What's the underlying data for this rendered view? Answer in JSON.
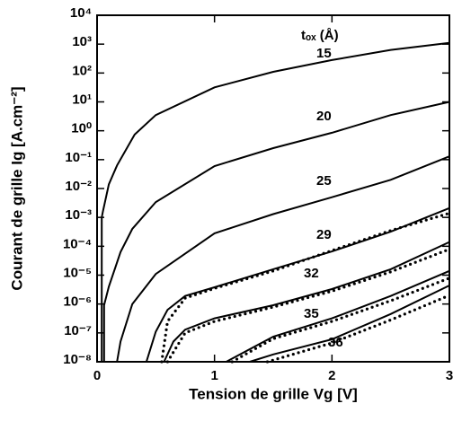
{
  "chart_data": {
    "type": "line",
    "xlabel": "Tension de grille Vg [V]",
    "ylabel": "Courant de grille Ig [A.cm⁻²]",
    "annotation": "tₒₓ (Å)",
    "xlim": [
      0,
      3
    ],
    "xticks": [
      0,
      1,
      2,
      3
    ],
    "ylim": [
      1e-08,
      10000
    ],
    "yscale": "log",
    "yticks": [
      {
        "value": 10000,
        "label": "10⁴"
      },
      {
        "value": 1000,
        "label": "10³"
      },
      {
        "value": 100,
        "label": "10²"
      },
      {
        "value": 10,
        "label": "10¹"
      },
      {
        "value": 1,
        "label": "10⁰"
      },
      {
        "value": 0.1,
        "label": "10⁻¹"
      },
      {
        "value": 0.01,
        "label": "10⁻²"
      },
      {
        "value": 0.001,
        "label": "10⁻³"
      },
      {
        "value": 0.0001,
        "label": "10⁻⁴"
      },
      {
        "value": 1e-05,
        "label": "10⁻⁵"
      },
      {
        "value": 1e-06,
        "label": "10⁻⁶"
      },
      {
        "value": 1e-07,
        "label": "10⁻⁷"
      },
      {
        "value": 1e-08,
        "label": "10⁻⁸"
      }
    ],
    "series": [
      {
        "name": "15",
        "color": "#000000",
        "style": "solid",
        "x": [
          0.04,
          0.04,
          0.05,
          0.1,
          0.17,
          0.32,
          0.5,
          1,
          1.5,
          2,
          2.5,
          3
        ],
        "values": [
          1e-08,
          0.001,
          0.0016,
          0.014,
          0.063,
          0.74,
          3.5,
          32,
          110,
          280,
          630,
          1100
        ]
      },
      {
        "name": "20",
        "color": "#000000",
        "style": "solid",
        "x": [
          0.06,
          0.06,
          0.1,
          0.2,
          0.3,
          0.5,
          1,
          1.5,
          2,
          2.5,
          3
        ],
        "values": [
          1e-08,
          9.1e-07,
          4e-06,
          6.3e-05,
          0.0004,
          0.0034,
          0.06,
          0.25,
          0.85,
          3.5,
          10
        ]
      },
      {
        "name": "25",
        "color": "#000000",
        "style": "solid",
        "x": [
          0.17,
          0.2,
          0.3,
          0.5,
          1,
          1.5,
          2,
          2.5,
          3
        ],
        "values": [
          1e-08,
          5e-08,
          1e-06,
          1.1e-05,
          0.00028,
          0.0013,
          0.005,
          0.02,
          0.13
        ]
      },
      {
        "name": "29",
        "color": "#000000",
        "style": "solid",
        "x": [
          0.42,
          0.5,
          0.6,
          0.75,
          1,
          1.5,
          2,
          2.5,
          3
        ],
        "values": [
          1e-08,
          1.1e-07,
          6.3e-07,
          1.9e-06,
          3.8e-06,
          1.6e-05,
          6.6e-05,
          0.00032,
          0.0021
        ]
      },
      {
        "color": "#000000",
        "style": "dotted",
        "x": [
          0.55,
          0.6,
          0.75,
          1,
          1.5,
          2,
          2.5,
          3
        ],
        "values": [
          1e-08,
          2.5e-07,
          1.6e-06,
          3.5e-06,
          1.4e-05,
          7.1e-05,
          0.00035,
          0.0014
        ]
      },
      {
        "name": "32",
        "color": "#000000",
        "style": "solid",
        "x": [
          0.57,
          0.65,
          0.75,
          1,
          1.5,
          2,
          2.5,
          3
        ],
        "values": [
          1e-08,
          5e-08,
          1.3e-07,
          3.2e-07,
          9.1e-07,
          3.3e-06,
          1.6e-05,
          0.00014
        ]
      },
      {
        "color": "#000000",
        "style": "dotted",
        "x": [
          0.6,
          0.75,
          1,
          1.5,
          2,
          2.5,
          3
        ],
        "values": [
          1e-08,
          1e-07,
          2.5e-07,
          7.9e-07,
          2.8e-06,
          1.3e-05,
          7.9e-05
        ]
      },
      {
        "name": "35",
        "color": "#000000",
        "style": "solid",
        "x": [
          1.1,
          1.5,
          2,
          2.5,
          3
        ],
        "values": [
          1e-08,
          7.4e-08,
          3.2e-07,
          1.9e-06,
          1.4e-05
        ]
      },
      {
        "color": "#000000",
        "style": "dotted",
        "x": [
          1.15,
          1.5,
          2,
          2.5,
          3
        ],
        "values": [
          1e-08,
          6.3e-08,
          2.5e-07,
          1.3e-06,
          7.9e-06
        ]
      },
      {
        "name": "36",
        "color": "#000000",
        "style": "solid",
        "x": [
          1.3,
          1.5,
          2,
          2.5,
          3
        ],
        "values": [
          1e-08,
          1.8e-08,
          6e-08,
          4.5e-07,
          4.4e-06
        ]
      },
      {
        "color": "#000000",
        "style": "dotted",
        "x": [
          1.45,
          2,
          2.5,
          3
        ],
        "values": [
          1e-08,
          4.5e-08,
          2.8e-07,
          2e-06
        ]
      }
    ]
  }
}
